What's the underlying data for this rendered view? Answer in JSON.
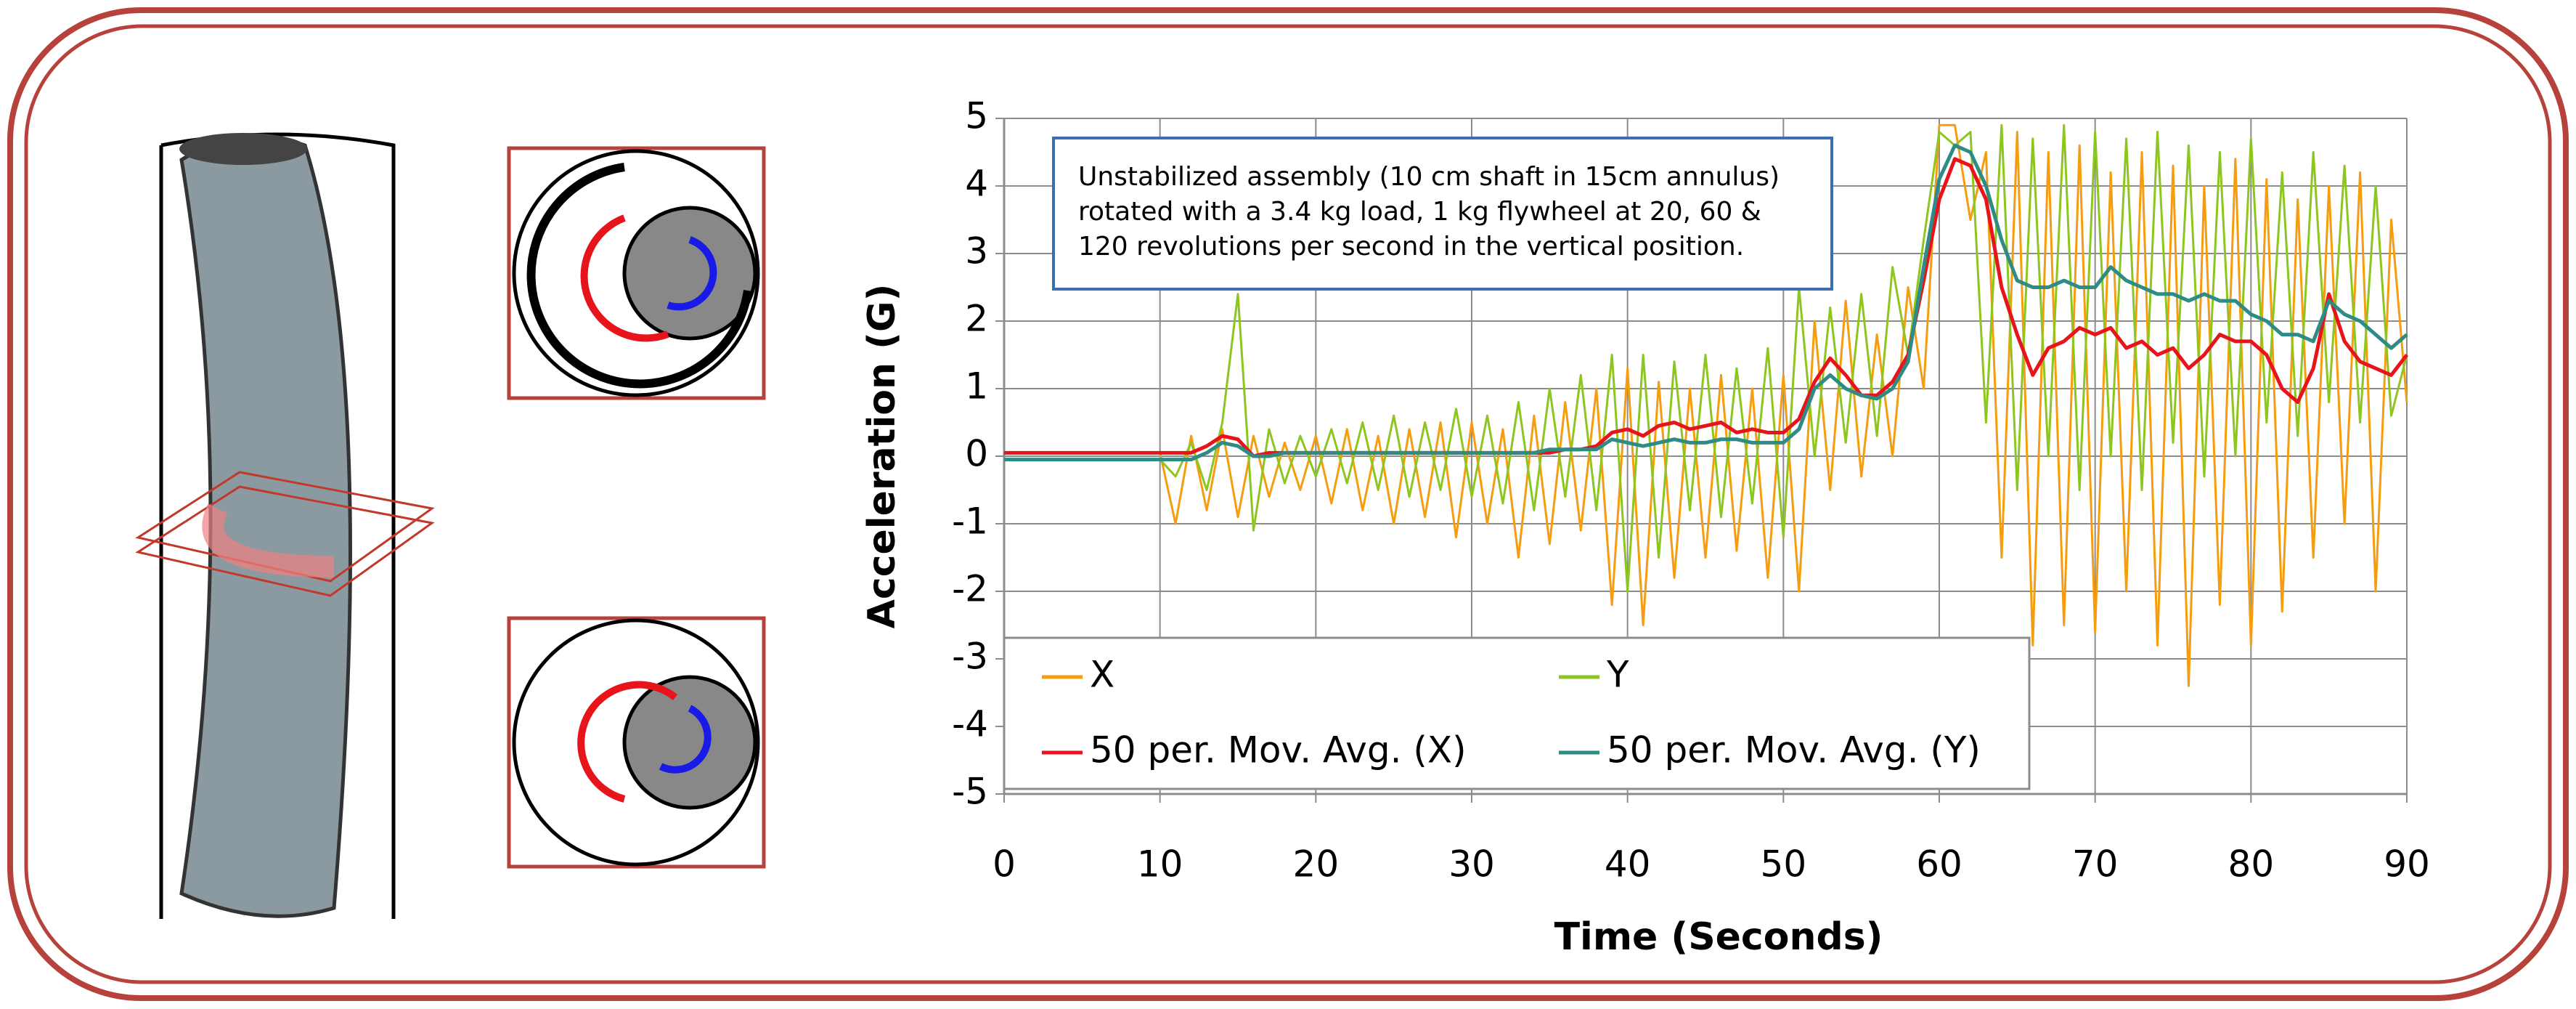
{
  "chart_data": {
    "type": "line",
    "annotation": [
      "Unstabilized assembly (10 cm shaft in 15cm annulus)",
      "rotated with a 3.4 kg load, 1 kg flywheel at 20, 60 &",
      "120 revolutions per second in the vertical position."
    ],
    "x_label": "Time (Seconds)",
    "y_label": "Acceleration (G)",
    "x": [
      0,
      1,
      2,
      3,
      4,
      5,
      6,
      7,
      8,
      9,
      10,
      11,
      12,
      13,
      14,
      15,
      16,
      17,
      18,
      19,
      20,
      21,
      22,
      23,
      24,
      25,
      26,
      27,
      28,
      29,
      30,
      31,
      32,
      33,
      34,
      35,
      36,
      37,
      38,
      39,
      40,
      41,
      42,
      43,
      44,
      45,
      46,
      47,
      48,
      49,
      50,
      51,
      52,
      53,
      54,
      55,
      56,
      57,
      58,
      59,
      60,
      61,
      62,
      63,
      64,
      65,
      66,
      67,
      68,
      69,
      70,
      71,
      72,
      73,
      74,
      75,
      76,
      77,
      78,
      79,
      80,
      81,
      82,
      83,
      84,
      85,
      86,
      87,
      88,
      89,
      90
    ],
    "series": [
      {
        "name": "X",
        "color": "#f59d0f",
        "values": [
          0.05,
          0.05,
          0.05,
          0.05,
          0.05,
          0.05,
          0.05,
          0.05,
          0.05,
          0.05,
          0.05,
          -1.0,
          0.3,
          -0.8,
          0.4,
          -0.9,
          0.3,
          -0.6,
          0.2,
          -0.5,
          0.3,
          -0.7,
          0.4,
          -0.8,
          0.3,
          -1.0,
          0.4,
          -0.9,
          0.5,
          -1.2,
          0.5,
          -1.0,
          0.4,
          -1.5,
          0.6,
          -1.3,
          0.8,
          -1.1,
          1.0,
          -2.2,
          1.3,
          -2.5,
          1.1,
          -1.8,
          1.0,
          -1.5,
          1.2,
          -1.4,
          1.0,
          -1.8,
          1.2,
          -2.0,
          2.0,
          -0.5,
          2.3,
          -0.3,
          1.8,
          0.0,
          2.5,
          1.0,
          4.9,
          4.9,
          3.5,
          4.5,
          -1.5,
          4.8,
          -2.8,
          4.5,
          -2.5,
          4.6,
          -2.6,
          4.2,
          -2.0,
          4.5,
          -2.8,
          4.3,
          -3.4,
          4.0,
          -2.2,
          4.4,
          -2.8,
          4.1,
          -2.3,
          3.8,
          -1.5,
          4.0,
          -1.0,
          4.2,
          -2.0,
          3.5,
          0.8
        ]
      },
      {
        "name": "Y",
        "color": "#8cc61e",
        "values": [
          -0.05,
          -0.05,
          -0.05,
          -0.05,
          -0.05,
          -0.05,
          -0.05,
          -0.05,
          -0.05,
          -0.05,
          -0.05,
          -0.3,
          0.2,
          -0.5,
          0.5,
          2.4,
          -1.1,
          0.4,
          -0.4,
          0.3,
          -0.3,
          0.4,
          -0.4,
          0.5,
          -0.5,
          0.6,
          -0.6,
          0.5,
          -0.5,
          0.7,
          -0.6,
          0.6,
          -0.7,
          0.8,
          -0.8,
          1.0,
          -0.6,
          1.2,
          -0.8,
          1.5,
          -2.0,
          1.5,
          -1.5,
          1.4,
          -0.8,
          1.5,
          -0.9,
          1.3,
          -0.7,
          1.6,
          -1.2,
          2.5,
          0.0,
          2.2,
          0.2,
          2.4,
          0.3,
          2.8,
          1.5,
          3.2,
          4.8,
          4.6,
          4.8,
          0.5,
          4.9,
          -0.5,
          4.7,
          0.0,
          4.9,
          -0.5,
          4.8,
          0.0,
          4.7,
          -0.5,
          4.8,
          0.2,
          4.6,
          -0.3,
          4.5,
          0.0,
          4.7,
          0.5,
          4.2,
          0.3,
          4.5,
          0.8,
          4.3,
          0.5,
          4.0,
          0.6,
          1.5
        ]
      },
      {
        "name": "50 per. Mov. Avg. (X)",
        "color": "#e8141b",
        "values": [
          0.05,
          0.05,
          0.05,
          0.05,
          0.05,
          0.05,
          0.05,
          0.05,
          0.05,
          0.05,
          0.05,
          0.05,
          0.05,
          0.15,
          0.3,
          0.25,
          0.0,
          0.05,
          0.05,
          0.05,
          0.05,
          0.05,
          0.05,
          0.05,
          0.05,
          0.05,
          0.05,
          0.05,
          0.05,
          0.05,
          0.05,
          0.05,
          0.05,
          0.05,
          0.05,
          0.05,
          0.1,
          0.1,
          0.15,
          0.35,
          0.4,
          0.3,
          0.45,
          0.5,
          0.4,
          0.45,
          0.5,
          0.35,
          0.4,
          0.35,
          0.35,
          0.55,
          1.1,
          1.45,
          1.2,
          0.9,
          0.9,
          1.1,
          1.5,
          2.6,
          3.8,
          4.4,
          4.3,
          3.8,
          2.5,
          1.8,
          1.2,
          1.6,
          1.7,
          1.9,
          1.8,
          1.9,
          1.6,
          1.7,
          1.5,
          1.6,
          1.3,
          1.5,
          1.8,
          1.7,
          1.7,
          1.5,
          1.0,
          0.8,
          1.3,
          2.4,
          1.7,
          1.4,
          1.3,
          1.2,
          1.5
        ]
      },
      {
        "name": "50 per. Mov. Avg. (Y)",
        "color": "#2e8b85",
        "values": [
          -0.05,
          -0.05,
          -0.05,
          -0.05,
          -0.05,
          -0.05,
          -0.05,
          -0.05,
          -0.05,
          -0.05,
          -0.05,
          -0.05,
          -0.05,
          0.05,
          0.2,
          0.15,
          0.0,
          0.0,
          0.05,
          0.05,
          0.05,
          0.05,
          0.05,
          0.05,
          0.05,
          0.05,
          0.05,
          0.05,
          0.05,
          0.05,
          0.05,
          0.05,
          0.05,
          0.05,
          0.05,
          0.1,
          0.1,
          0.1,
          0.1,
          0.25,
          0.2,
          0.15,
          0.2,
          0.25,
          0.2,
          0.2,
          0.25,
          0.25,
          0.2,
          0.2,
          0.2,
          0.4,
          1.0,
          1.2,
          1.0,
          0.9,
          0.85,
          1.0,
          1.4,
          2.8,
          4.1,
          4.6,
          4.5,
          4.0,
          3.2,
          2.6,
          2.5,
          2.5,
          2.6,
          2.5,
          2.5,
          2.8,
          2.6,
          2.5,
          2.4,
          2.4,
          2.3,
          2.4,
          2.3,
          2.3,
          2.1,
          2.0,
          1.8,
          1.8,
          1.7,
          2.3,
          2.1,
          2.0,
          1.8,
          1.6,
          1.8
        ]
      }
    ],
    "xlim": [
      0,
      90
    ],
    "xticks": [
      0,
      10,
      20,
      30,
      40,
      50,
      60,
      70,
      80,
      90
    ],
    "ylim": [
      -5,
      5
    ],
    "yticks": [
      -5,
      -4,
      -3,
      -2,
      -1,
      0,
      1,
      2,
      3,
      4,
      5
    ],
    "grid": true,
    "legend": "bottom-left"
  }
}
